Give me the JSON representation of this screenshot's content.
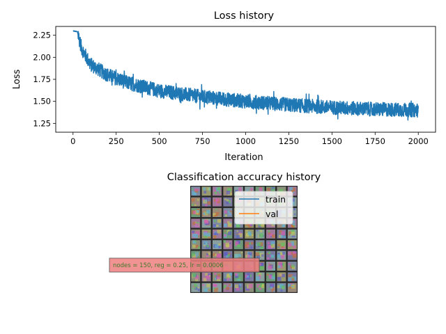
{
  "chart_data": [
    {
      "type": "line",
      "title": "Loss history",
      "xlabel": "Iteration",
      "ylabel": "Loss",
      "xlim": [
        -100,
        2100
      ],
      "ylim": [
        1.15,
        2.35
      ],
      "x_ticks": [
        "0",
        "250",
        "500",
        "750",
        "1000",
        "1250",
        "1500",
        "1750",
        "2000"
      ],
      "x_tick_values": [
        0,
        250,
        500,
        750,
        1000,
        1250,
        1500,
        1750,
        2000
      ],
      "y_ticks": [
        "1.25",
        "1.50",
        "1.75",
        "2.00",
        "2.25"
      ],
      "y_tick_values": [
        1.25,
        1.5,
        1.75,
        2.0,
        2.25
      ],
      "grid": false,
      "series_color": "#1f77b4",
      "series": [
        {
          "x_range": [
            0,
            2000
          ],
          "points": 2001,
          "trend": {
            "x": [
              0,
              25,
              50,
              100,
              200,
              300,
              500,
              750,
              1000,
              1250,
              1500,
              1750,
              2000
            ],
            "y": [
              2.3,
              2.29,
              2.1,
              1.92,
              1.8,
              1.72,
              1.62,
              1.55,
              1.5,
              1.46,
              1.43,
              1.41,
              1.4
            ]
          },
          "noise_amplitude": 0.08
        }
      ]
    },
    {
      "type": "line",
      "title": "Classification accuracy history",
      "legend": {
        "placement": "upper-center",
        "entries": [
          {
            "label": "train",
            "color": "#1f77b4"
          },
          {
            "label": "val",
            "color": "#ff7f0e"
          }
        ]
      },
      "series": [
        {
          "name": "train",
          "values": []
        },
        {
          "name": "val",
          "values": []
        }
      ]
    }
  ],
  "overlay_image": {
    "description_icon": "weights-grid-image",
    "grid_rows": 10,
    "grid_cols": 10
  },
  "annotation": {
    "text": "nodes = 150, reg = 0.25, lr = 0.0006",
    "bg_color": "#f08080",
    "text_color": "#2e7d32"
  }
}
